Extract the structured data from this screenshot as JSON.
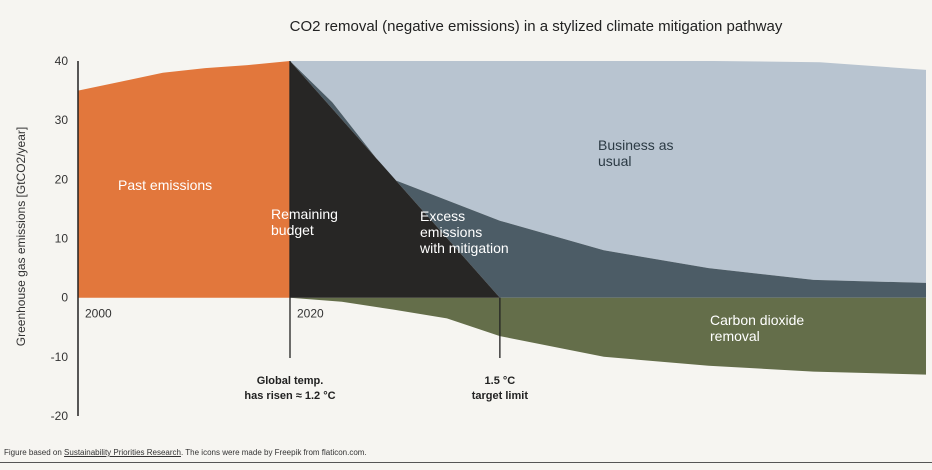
{
  "chart_data": {
    "type": "area",
    "title": "CO2 removal (negative emissions) in a stylized climate mitigation pathway",
    "xlabel": "",
    "ylabel": "Greenhouse gas emissions [GtCO2/year]",
    "xlim": [
      2000,
      2080
    ],
    "ylim": [
      -20,
      40
    ],
    "yticks": [
      40,
      30,
      20,
      10,
      0,
      -10,
      -20
    ],
    "xtick_labels": [
      {
        "x": 2000,
        "label": "2000"
      },
      {
        "x": 2020,
        "label": "2020"
      }
    ],
    "series": [
      {
        "name": "Past emissions",
        "label": [
          "Past emissions"
        ],
        "color": "#e2773c",
        "points": [
          [
            2000,
            35
          ],
          [
            2004,
            36.5
          ],
          [
            2008,
            38
          ],
          [
            2012,
            38.8
          ],
          [
            2016,
            39.3
          ],
          [
            2020,
            40
          ]
        ]
      },
      {
        "name": "Remaining budget",
        "label": [
          "Remaining",
          "budget"
        ],
        "color": "#272625",
        "points": [
          [
            2020,
            40
          ],
          [
            2020,
            0
          ],
          [
            2039.8,
            0
          ]
        ]
      },
      {
        "name": "Excess emissions with mitigation",
        "label": [
          "Excess",
          "emissions",
          "with mitigation"
        ],
        "color": "#4c5c66",
        "upper": [
          [
            2020,
            40
          ],
          [
            2024,
            33
          ],
          [
            2029.7,
            20
          ],
          [
            2039.8,
            13
          ],
          [
            2049.6,
            8
          ],
          [
            2059.5,
            5
          ],
          [
            2069.4,
            3
          ],
          [
            2080,
            2.5
          ]
        ],
        "lower": [
          [
            2020,
            40
          ],
          [
            2039.8,
            0
          ],
          [
            2080,
            0
          ]
        ]
      },
      {
        "name": "Business as usual",
        "label": [
          "Business as",
          "usual"
        ],
        "color": "#b8c4d0",
        "upper": [
          [
            2020,
            40
          ],
          [
            2040,
            40
          ],
          [
            2060,
            40
          ],
          [
            2070,
            39.8
          ],
          [
            2080,
            38.5
          ]
        ]
      },
      {
        "name": "Carbon dioxide removal",
        "label": [
          "Carbon dioxide",
          "removal"
        ],
        "color": "#646e4a",
        "points": [
          [
            2020,
            0
          ],
          [
            2039.8,
            0
          ],
          [
            2080,
            0
          ],
          [
            2080,
            -13
          ],
          [
            2069.4,
            -12.5
          ],
          [
            2059.5,
            -11.5
          ],
          [
            2049.6,
            -10
          ],
          [
            2039.8,
            -6.5
          ],
          [
            2034.8,
            -3.5
          ],
          [
            2029.7,
            -2
          ],
          [
            2024.9,
            -0.7
          ],
          [
            2020,
            0
          ]
        ]
      }
    ],
    "markers": [
      {
        "x": 2020,
        "label": [
          "Global temp.",
          "has risen ≈ 1.2 °C"
        ]
      },
      {
        "x": 2039.8,
        "label": [
          "1.5 °C",
          "target limit"
        ]
      }
    ]
  },
  "footer": {
    "prefix": "Figure based on ",
    "link": "Sustainability Priorities Research",
    "suffix": ". The icons were made by Freepik from flaticon.com."
  }
}
